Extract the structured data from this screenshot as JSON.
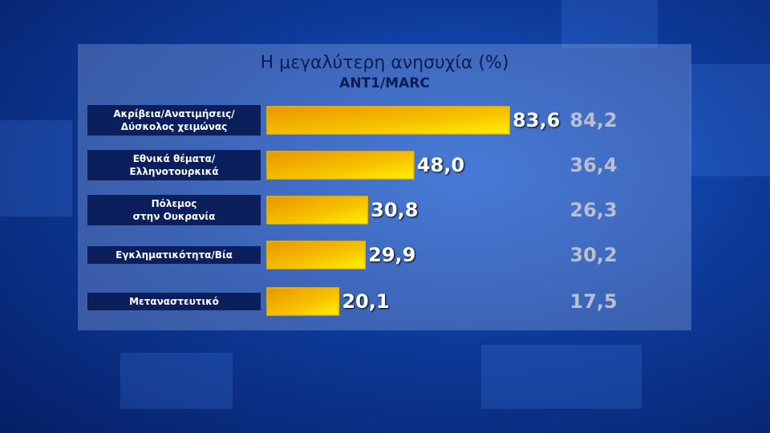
{
  "chart_data": {
    "type": "bar",
    "orientation": "horizontal",
    "title": "Η μεγαλύτερη ανησυχία (%)",
    "subtitle": "ANT1/MARC",
    "categories": [
      "Ακρίβεια/Ανατιμήσεις/\nΔύσκολος χειμώνας",
      "Εθνικά θέματα/\nΕλληνοτουρκικά",
      "Πόλεμος\nστην Ουκρανία",
      "Εγκληματικότητα/Βία",
      "Μεταναστευτικό"
    ],
    "series": [
      {
        "color": "#f5b800",
        "values": [
          83.6,
          48.0,
          30.8,
          29.9,
          20.1
        ],
        "value_labels": [
          "83,6",
          "48,0",
          "30,8",
          "29,9",
          "20,1"
        ]
      },
      {
        "color": "#b9bfcc",
        "values": [
          84.2,
          36.4,
          26.3,
          30.2,
          17.5
        ],
        "value_labels": [
          "84,2",
          "36,4",
          "26,3",
          "30,2",
          "17,5"
        ]
      }
    ]
  }
}
